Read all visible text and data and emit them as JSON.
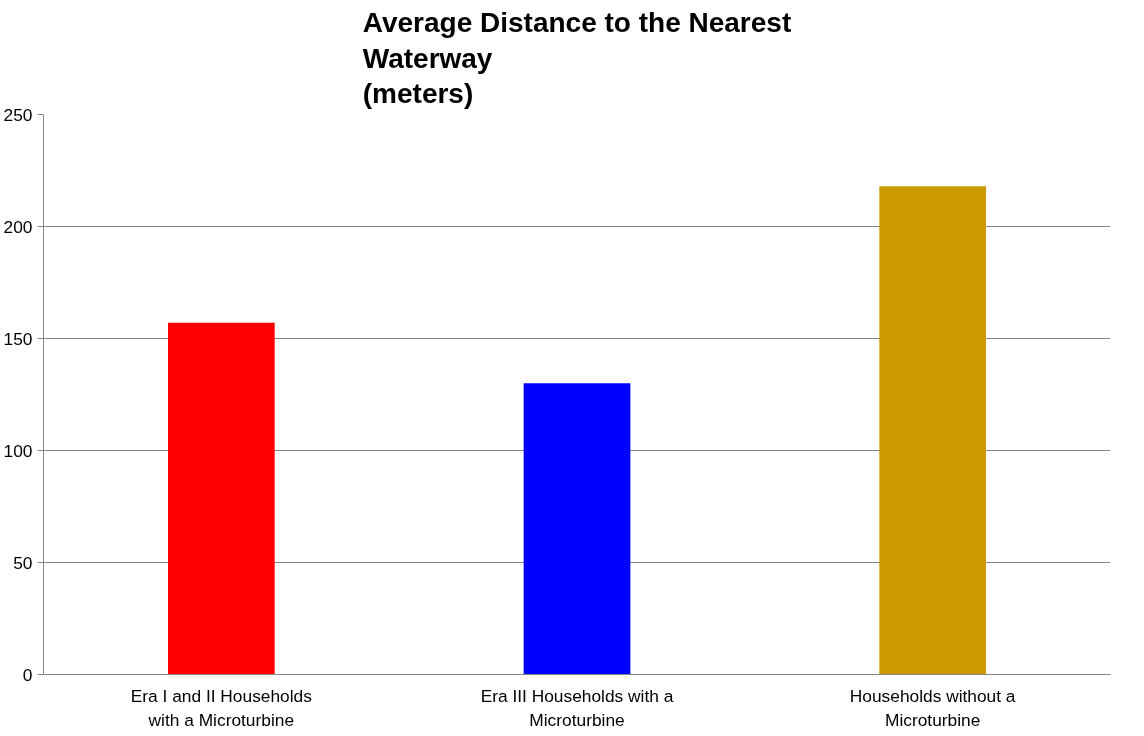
{
  "chart_data": {
    "type": "bar",
    "title": "Average Distance to the Nearest\nWaterway\n(meters)",
    "categories": [
      "Era I and II Households\nwith a Microturbine",
      "Era III Households with a\nMicroturbine",
      "Households without a\nMicroturbine"
    ],
    "values": [
      157,
      130,
      218
    ],
    "colors": [
      "#ff0000",
      "#0000ff",
      "#cc9900"
    ],
    "ylim": [
      0,
      250
    ],
    "yticks": [
      0,
      50,
      100,
      150,
      200,
      250
    ],
    "grid": "y"
  }
}
